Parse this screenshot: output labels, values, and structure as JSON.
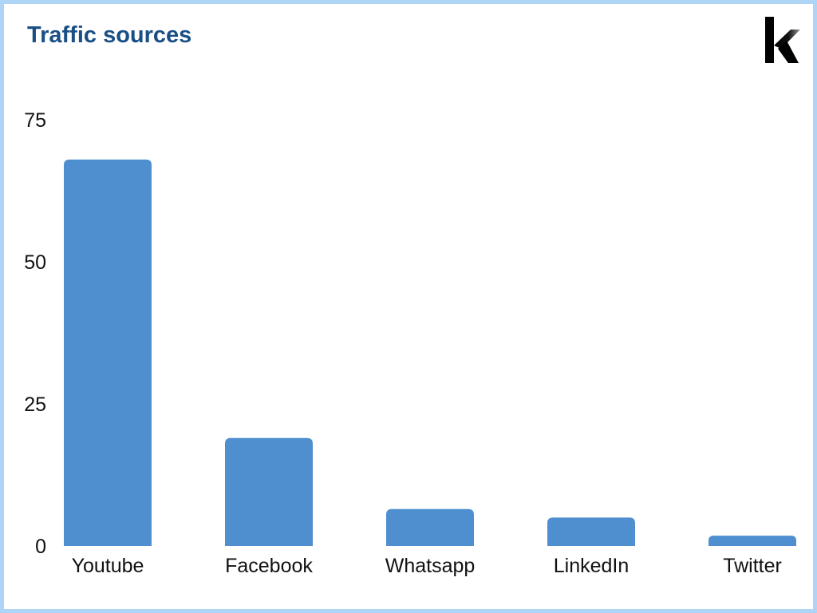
{
  "chart_data": {
    "type": "bar",
    "title": "Traffic sources",
    "categories": [
      "Youtube",
      "Facebook",
      "Whatsapp",
      "LinkedIn",
      "Twitter"
    ],
    "values": [
      68,
      19,
      6.5,
      5,
      1.8
    ],
    "yticks": [
      "0",
      "25",
      "50",
      "75"
    ],
    "ylim": [
      0,
      75
    ],
    "xlabel": "",
    "ylabel": "",
    "grid": false,
    "bar_color": "#4f8fcf"
  },
  "colors": {
    "title": "#1a4f86",
    "frame_border": "#aed4f6",
    "bar": "#4f8fcf"
  },
  "logo": {
    "icon": "k-logo-icon"
  }
}
